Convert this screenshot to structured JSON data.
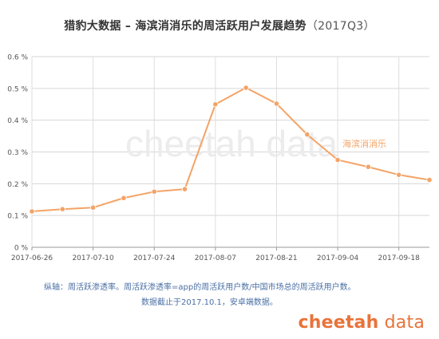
{
  "header": {
    "title": "猎豹大数据 – 海滨消消乐的周活跃用户发展趋势",
    "period": "（2017Q3）"
  },
  "chart_data": {
    "type": "line",
    "y_tick_labels": [
      "0 %",
      "0.1 %",
      "0.2 %",
      "0.3 %",
      "0.4 %",
      "0.5 %",
      "0.6 %"
    ],
    "x_tick_labels": [
      "2017-06-26",
      "2017-07-10",
      "2017-07-24",
      "2017-08-07",
      "2017-08-21",
      "2017-09-04",
      "2017-09-18"
    ],
    "ylim": [
      0,
      0.6
    ],
    "x": [
      "2017-06-26",
      "2017-07-03",
      "2017-07-10",
      "2017-07-17",
      "2017-07-24",
      "2017-07-31",
      "2017-08-07",
      "2017-08-14",
      "2017-08-21",
      "2017-08-28",
      "2017-09-04",
      "2017-09-11",
      "2017-09-18",
      "2017-09-25"
    ],
    "series": [
      {
        "name": "海滨消消乐",
        "values": [
          0.113,
          0.12,
          0.125,
          0.155,
          0.175,
          0.183,
          0.45,
          0.502,
          0.452,
          0.355,
          0.275,
          0.253,
          0.228,
          0.212
        ],
        "color": "#f4a366"
      }
    ],
    "grid": true
  },
  "watermark": "cheetah data",
  "notes": {
    "line1": "纵轴：周活跃渗透率。周活跃渗透率=app的周活跃用户数/中国市场总的周活跃用户数。",
    "line2": "数据截止于2017.10.1，安卓端数据。"
  },
  "brand": {
    "bold": "cheetah",
    "light": " data",
    "color": "#e8733a"
  }
}
